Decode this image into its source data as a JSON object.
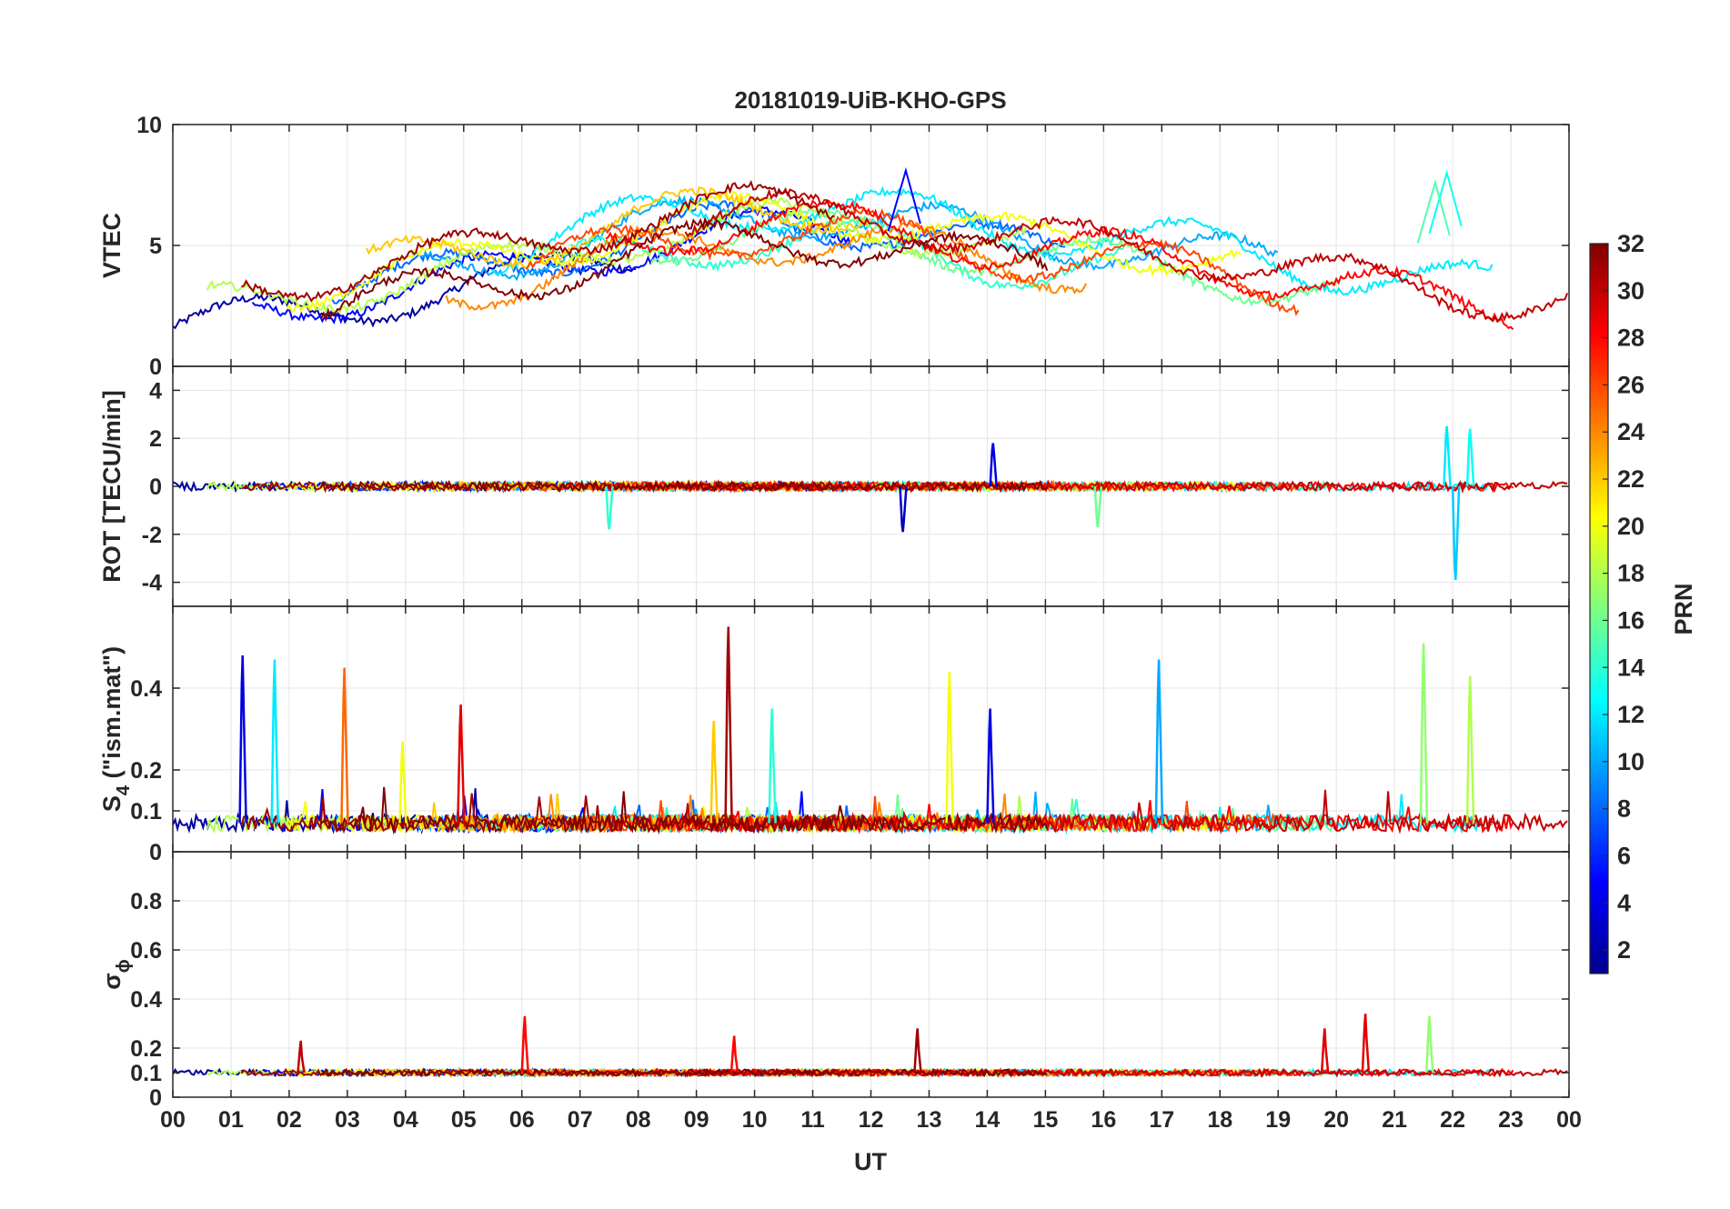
{
  "chart_data": {
    "type": "line",
    "title": "20181019-UiB-KHO-GPS",
    "xlabel": "UT",
    "x_tick_labels": [
      "00",
      "01",
      "02",
      "03",
      "04",
      "05",
      "06",
      "07",
      "08",
      "09",
      "10",
      "11",
      "12",
      "13",
      "14",
      "15",
      "16",
      "17",
      "18",
      "19",
      "20",
      "21",
      "22",
      "23",
      "00"
    ],
    "xlim_hours": [
      0,
      24
    ],
    "grid": true,
    "colorbar": {
      "label": "PRN",
      "range": [
        1,
        32
      ],
      "ticks": [
        2,
        4,
        6,
        8,
        10,
        12,
        14,
        16,
        18,
        20,
        22,
        24,
        26,
        28,
        30,
        32
      ],
      "colormap": "jet",
      "placement": "right"
    },
    "panels": [
      {
        "name": "vtec",
        "ylabel": "VTEC",
        "ylim": [
          0,
          10
        ],
        "yticks": [
          0,
          5,
          10
        ],
        "series_summary": {
          "baseline_hourly": [
            2.3,
            2.5,
            2.9,
            3.3,
            3.6,
            3.9,
            4.3,
            4.9,
            5.4,
            5.7,
            5.9,
            5.9,
            5.8,
            5.5,
            5.0,
            4.8,
            4.7,
            4.5,
            4.2,
            3.7,
            3.3,
            3.0,
            2.7,
            2.5,
            2.4
          ],
          "peaks": [
            {
              "prn": 5,
              "x": 12.6,
              "y": 8.1
            },
            {
              "prn": 13,
              "x": 21.9,
              "y": 8.0
            },
            {
              "prn": 15,
              "x": 21.7,
              "y": 7.6
            }
          ]
        }
      },
      {
        "name": "rot",
        "ylabel": "ROT [TECU/min]",
        "ylim": [
          -5,
          5
        ],
        "yticks": [
          -4,
          -2,
          0,
          2,
          4
        ],
        "yticklabels": [
          "-4",
          "-2",
          "0",
          "2",
          "4"
        ],
        "series_summary": {
          "baseline": 0,
          "spikes": [
            {
              "prn": 12,
              "x": 21.9,
              "y": 2.5
            },
            {
              "prn": 11,
              "x": 22.05,
              "y": -3.9
            },
            {
              "prn": 13,
              "x": 22.3,
              "y": 2.4
            },
            {
              "prn": 3,
              "x": 12.55,
              "y": -1.9
            },
            {
              "prn": 4,
              "x": 14.1,
              "y": 1.8
            },
            {
              "prn": 14,
              "x": 7.5,
              "y": -1.8
            },
            {
              "prn": 16,
              "x": 15.9,
              "y": -1.7
            }
          ]
        }
      },
      {
        "name": "s4",
        "ylabel": "S",
        "ylabel_sub": "4",
        "ylabel_suffix": " (\"ism.mat\")",
        "ylim": [
          0,
          0.6
        ],
        "yticks": [
          0,
          0.1,
          0.2,
          0.4
        ],
        "yticklabels": [
          "0",
          "0.1",
          "0.2",
          "0.4"
        ],
        "series_summary": {
          "baseline": 0.07,
          "spikes": [
            {
              "prn": 4,
              "x": 1.2,
              "y": 0.48
            },
            {
              "prn": 12,
              "x": 1.75,
              "y": 0.47
            },
            {
              "prn": 25,
              "x": 2.95,
              "y": 0.45
            },
            {
              "prn": 20,
              "x": 3.95,
              "y": 0.27
            },
            {
              "prn": 29,
              "x": 4.95,
              "y": 0.36
            },
            {
              "prn": 31,
              "x": 9.55,
              "y": 0.55
            },
            {
              "prn": 22,
              "x": 9.3,
              "y": 0.32
            },
            {
              "prn": 14,
              "x": 10.3,
              "y": 0.35
            },
            {
              "prn": 20,
              "x": 13.35,
              "y": 0.44
            },
            {
              "prn": 4,
              "x": 14.05,
              "y": 0.35
            },
            {
              "prn": 10,
              "x": 16.95,
              "y": 0.47
            },
            {
              "prn": 17,
              "x": 21.5,
              "y": 0.51
            },
            {
              "prn": 18,
              "x": 22.3,
              "y": 0.43
            }
          ]
        }
      },
      {
        "name": "sigma_phi",
        "ylabel": "σ",
        "ylabel_sub": "ϕ",
        "ylim": [
          0,
          1
        ],
        "yticks": [
          0,
          0.1,
          0.2,
          0.4,
          0.6,
          0.8
        ],
        "yticklabels": [
          "0",
          "0.1",
          "0.2",
          "0.4",
          "0.6",
          "0.8"
        ],
        "series_summary": {
          "baseline": 0.1,
          "spikes": [
            {
              "prn": 28,
              "x": 6.05,
              "y": 0.33
            },
            {
              "prn": 29,
              "x": 20.5,
              "y": 0.34
            },
            {
              "prn": 17,
              "x": 21.6,
              "y": 0.33
            },
            {
              "prn": 31,
              "x": 12.8,
              "y": 0.28
            },
            {
              "prn": 29,
              "x": 19.8,
              "y": 0.28
            },
            {
              "prn": 30,
              "x": 2.2,
              "y": 0.23
            },
            {
              "prn": 28,
              "x": 9.65,
              "y": 0.25
            }
          ]
        }
      }
    ]
  }
}
